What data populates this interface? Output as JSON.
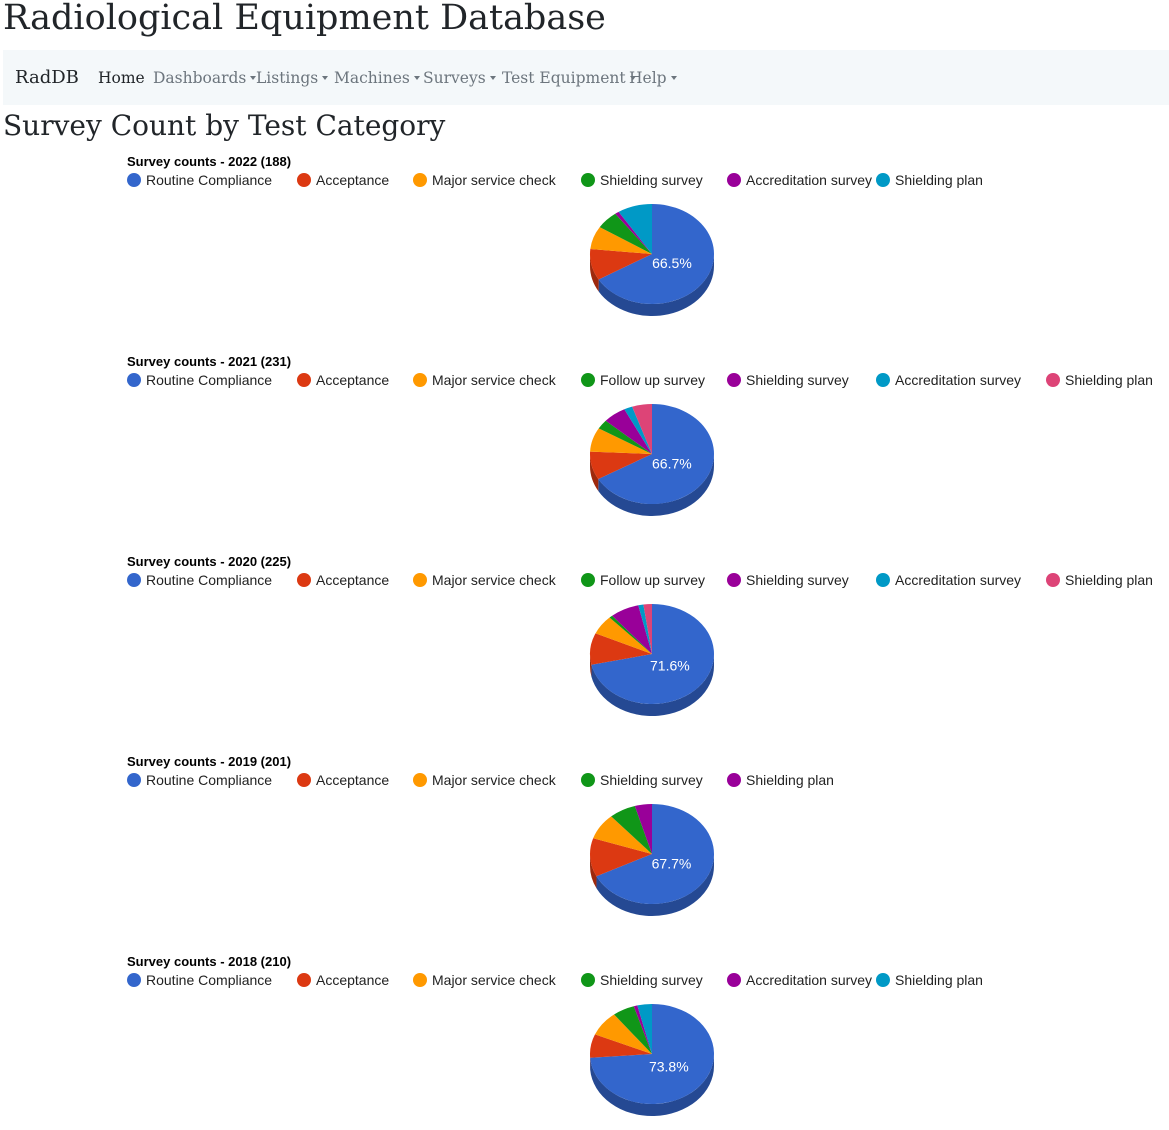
{
  "site_title": "Radiological Equipment Database",
  "navbar": {
    "brand": "RadDB",
    "items": [
      {
        "label": "Home",
        "dropdown": false
      },
      {
        "label": "Dashboards",
        "dropdown": true
      },
      {
        "label": "Listings",
        "dropdown": true
      },
      {
        "label": "Machines",
        "dropdown": true
      },
      {
        "label": "Surveys",
        "dropdown": true
      },
      {
        "label": "Test Equipment",
        "dropdown": true
      },
      {
        "label": "Help",
        "dropdown": true
      }
    ]
  },
  "page_heading": "Survey Count by Test Category",
  "colors": {
    "Routine Compliance": "#3366cc",
    "Acceptance": "#dc3912",
    "Major service check": "#ff9900",
    "Follow up survey": "#109618",
    "Shielding survey": "#990099",
    "Accreditation survey": "#0099c6",
    "Shielding plan": "#dd4477"
  },
  "chart_data": [
    {
      "type": "pie",
      "title": "Survey counts - 2022 (188)",
      "legend": "top",
      "pie_label": "66.5%",
      "slices": [
        {
          "label": "Routine Compliance",
          "value": 125,
          "color": "#3366cc"
        },
        {
          "label": "Acceptance",
          "value": 19,
          "color": "#dc3912"
        },
        {
          "label": "Major service check",
          "value": 14,
          "color": "#ff9900"
        },
        {
          "label": "Shielding survey",
          "value": 11,
          "color": "#109618"
        },
        {
          "label": "Accreditation survey",
          "value": 2,
          "color": "#990099"
        },
        {
          "label": "Shielding plan",
          "value": 17,
          "color": "#0099c6"
        }
      ]
    },
    {
      "type": "pie",
      "title": "Survey counts - 2021 (231)",
      "legend": "top",
      "pie_label": "66.7%",
      "slices": [
        {
          "label": "Routine Compliance",
          "value": 154,
          "color": "#3366cc"
        },
        {
          "label": "Acceptance",
          "value": 21,
          "color": "#dc3912"
        },
        {
          "label": "Major service check",
          "value": 18,
          "color": "#ff9900"
        },
        {
          "label": "Follow up survey",
          "value": 7,
          "color": "#109618"
        },
        {
          "label": "Shielding survey",
          "value": 14,
          "color": "#990099"
        },
        {
          "label": "Accreditation survey",
          "value": 5,
          "color": "#0099c6"
        },
        {
          "label": "Shielding plan",
          "value": 12,
          "color": "#dd4477"
        }
      ]
    },
    {
      "type": "pie",
      "title": "Survey counts - 2020 (225)",
      "legend": "top",
      "pie_label": "71.6%",
      "slices": [
        {
          "label": "Routine Compliance",
          "value": 161,
          "color": "#3366cc"
        },
        {
          "label": "Acceptance",
          "value": 23,
          "color": "#dc3912"
        },
        {
          "label": "Major service check",
          "value": 14,
          "color": "#ff9900"
        },
        {
          "label": "Follow up survey",
          "value": 2,
          "color": "#109618"
        },
        {
          "label": "Shielding survey",
          "value": 17,
          "color": "#990099"
        },
        {
          "label": "Accreditation survey",
          "value": 3,
          "color": "#0099c6"
        },
        {
          "label": "Shielding plan",
          "value": 5,
          "color": "#dd4477"
        }
      ]
    },
    {
      "type": "pie",
      "title": "Survey counts - 2019 (201)",
      "legend": "top",
      "pie_label": "67.7%",
      "slices": [
        {
          "label": "Routine Compliance",
          "value": 136,
          "color": "#3366cc"
        },
        {
          "label": "Acceptance",
          "value": 25,
          "color": "#dc3912"
        },
        {
          "label": "Major service check",
          "value": 17,
          "color": "#ff9900"
        },
        {
          "label": "Shielding survey",
          "value": 14,
          "color": "#109618"
        },
        {
          "label": "Shielding plan",
          "value": 9,
          "color": "#990099"
        }
      ]
    },
    {
      "type": "pie",
      "title": "Survey counts - 2018 (210)",
      "legend": "top",
      "pie_label": "73.8%",
      "slices": [
        {
          "label": "Routine Compliance",
          "value": 155,
          "color": "#3366cc"
        },
        {
          "label": "Acceptance",
          "value": 16,
          "color": "#dc3912"
        },
        {
          "label": "Major service check",
          "value": 17,
          "color": "#ff9900"
        },
        {
          "label": "Shielding survey",
          "value": 12,
          "color": "#109618"
        },
        {
          "label": "Accreditation survey",
          "value": 2,
          "color": "#990099"
        },
        {
          "label": "Shielding plan",
          "value": 8,
          "color": "#0099c6"
        }
      ]
    }
  ]
}
